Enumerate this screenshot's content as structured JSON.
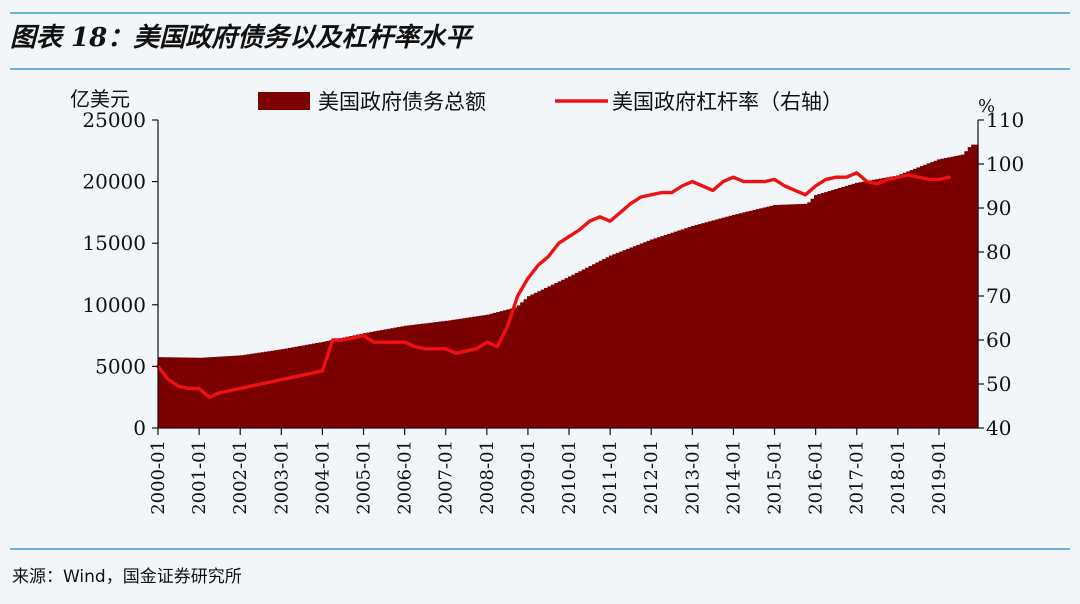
{
  "header": {
    "title": "图表 18：美国政府债务以及杠杆率水平"
  },
  "footer": {
    "source": "来源：Wind，国金证券研究所"
  },
  "chart_data": {
    "type": "bar+line",
    "left_unit": "亿美元",
    "right_unit": "%",
    "left_ylim": [
      0,
      25000
    ],
    "right_ylim": [
      40,
      110
    ],
    "left_ticks": [
      "0",
      "5000",
      "10000",
      "15000",
      "20000",
      "25000"
    ],
    "right_ticks": [
      "40",
      "50",
      "60",
      "70",
      "80",
      "90",
      "100",
      "110"
    ],
    "x_ticks": [
      "2000-01",
      "2001-01",
      "2002-01",
      "2003-01",
      "2004-01",
      "2005-01",
      "2006-01",
      "2007-01",
      "2008-01",
      "2009-01",
      "2010-01",
      "2011-01",
      "2012-01",
      "2013-01",
      "2014-01",
      "2015-01",
      "2016-01",
      "2017-01",
      "2018-01",
      "2019-01"
    ],
    "legend_placement": "top",
    "series": [
      {
        "name": "美国政府债务总额",
        "kind": "bar",
        "axis": "left",
        "color": "#7b0000",
        "x": [
          2000.0,
          2001.0,
          2002.0,
          2003.0,
          2004.0,
          2005.0,
          2006.0,
          2007.0,
          2008.0,
          2008.7,
          2009.0,
          2010.0,
          2011.0,
          2012.0,
          2013.0,
          2014.0,
          2015.0,
          2015.8,
          2016.0,
          2017.0,
          2018.0,
          2019.0,
          2019.6,
          2019.8
        ],
        "values": [
          5750,
          5700,
          5900,
          6400,
          7000,
          7700,
          8300,
          8700,
          9200,
          9800,
          10700,
          12300,
          14000,
          15300,
          16400,
          17300,
          18100,
          18200,
          18900,
          19900,
          20500,
          21800,
          22200,
          23000
        ]
      },
      {
        "name": "美国政府杠杆率（右轴）",
        "kind": "line",
        "axis": "right",
        "color": "#ee1111",
        "x": [
          2000.0,
          2000.25,
          2000.5,
          2000.75,
          2001.0,
          2001.25,
          2001.5,
          2001.75,
          2002.0,
          2002.5,
          2003.0,
          2003.25,
          2003.5,
          2003.75,
          2004.0,
          2004.25,
          2004.5,
          2004.75,
          2005.0,
          2005.25,
          2005.5,
          2005.75,
          2006.0,
          2006.25,
          2006.5,
          2006.75,
          2007.0,
          2007.25,
          2007.5,
          2007.75,
          2008.0,
          2008.25,
          2008.5,
          2008.75,
          2009.0,
          2009.25,
          2009.5,
          2009.75,
          2010.0,
          2010.25,
          2010.5,
          2010.75,
          2011.0,
          2011.25,
          2011.5,
          2011.75,
          2012.0,
          2012.25,
          2012.5,
          2012.75,
          2013.0,
          2013.25,
          2013.5,
          2013.75,
          2014.0,
          2014.25,
          2014.5,
          2014.75,
          2015.0,
          2015.25,
          2015.5,
          2015.75,
          2016.0,
          2016.25,
          2016.5,
          2016.75,
          2017.0,
          2017.25,
          2017.5,
          2017.75,
          2018.0,
          2018.25,
          2018.5,
          2018.75,
          2019.0,
          2019.25
        ],
        "values": [
          54,
          51,
          49.5,
          49,
          49,
          47,
          48,
          48.5,
          49,
          50,
          51,
          51.5,
          52,
          52.5,
          53,
          60,
          60,
          60.5,
          61,
          59.5,
          59.5,
          59.5,
          59.5,
          58.5,
          58,
          58,
          58,
          57,
          57.5,
          58,
          59.5,
          58.5,
          63,
          70,
          74,
          77,
          79,
          82,
          83.5,
          85,
          87,
          88,
          87,
          89,
          91,
          92.5,
          93,
          93.5,
          93.5,
          95,
          96,
          95,
          94,
          96,
          97,
          96,
          96,
          96,
          96.5,
          95,
          94,
          93,
          95,
          96.5,
          97,
          97,
          98,
          96,
          95.5,
          96.5,
          97,
          97.5,
          97,
          96.5,
          96.5,
          97
        ]
      }
    ]
  }
}
